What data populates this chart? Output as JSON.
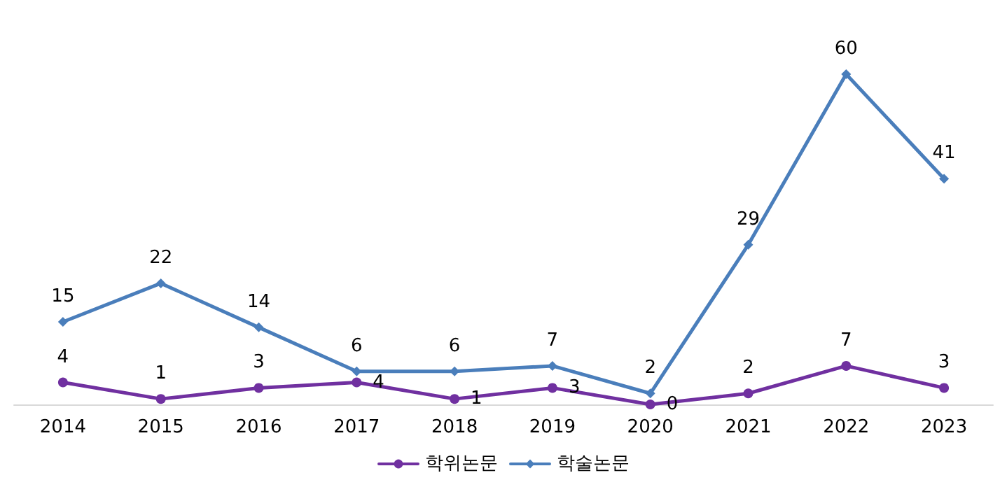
{
  "chart_data": {
    "type": "line",
    "categories": [
      "2014",
      "2015",
      "2016",
      "2017",
      "2018",
      "2019",
      "2020",
      "2021",
      "2022",
      "2023"
    ],
    "series": [
      {
        "name": "학위논문",
        "color": "#7030a0",
        "marker": "circle",
        "values": [
          4,
          1,
          3,
          4,
          1,
          3,
          0,
          2,
          7,
          3
        ]
      },
      {
        "name": "학술논문",
        "color": "#4a7ebb",
        "marker": "diamond",
        "values": [
          15,
          22,
          14,
          6,
          6,
          7,
          2,
          29,
          60,
          41
        ]
      }
    ],
    "data_labels": true,
    "legend": "bottom",
    "grid": false
  }
}
